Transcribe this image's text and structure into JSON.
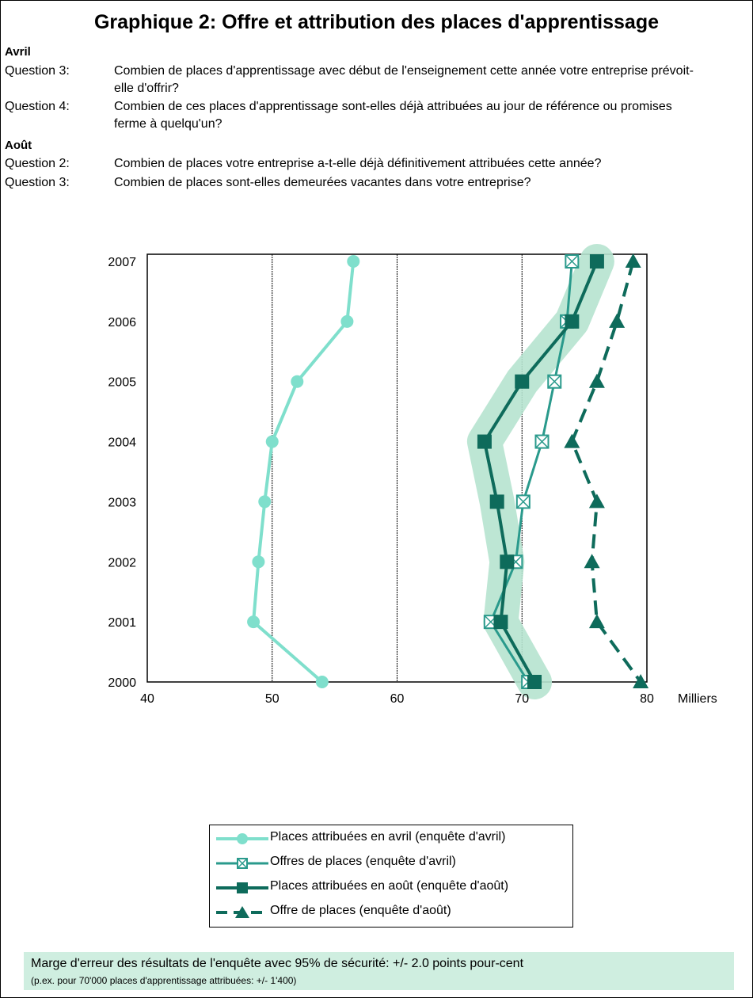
{
  "title": "Graphique 2: Offre et attribution des places d'apprentissage",
  "sections": [
    {
      "heading": "Avril",
      "questions": [
        {
          "label": "Question 3:",
          "text": "Combien de places d'apprentissage avec début de l'enseignement cette année votre entreprise prévoit-elle d'offrir?"
        },
        {
          "label": "Question 4:",
          "text": "Combien de ces places d'apprentissage sont-elles déjà attribuées au jour de référence ou promises ferme à quelqu'un?"
        }
      ]
    },
    {
      "heading": "Août",
      "questions": [
        {
          "label": "Question 2:",
          "text": "Combien de places votre entreprise a-t-elle déjà définitivement attribuées cette année?"
        },
        {
          "label": "Question 3:",
          "text": "Combien de places sont-elles demeurées vacantes dans votre entreprise?"
        }
      ]
    }
  ],
  "chart_data": {
    "type": "line",
    "orientation": "horizontal-values",
    "y_categories": [
      "2007",
      "2006",
      "2005",
      "2004",
      "2003",
      "2002",
      "2001",
      "2000"
    ],
    "x_ticks": [
      "40",
      "50",
      "60",
      "70",
      "80"
    ],
    "xlim": [
      40,
      80
    ],
    "x_unit_label": "Milliers",
    "grid": "vertical-dashed",
    "series": [
      {
        "name": "Places attribuées en avril (enquête d'avril)",
        "color": "#7fdfcc",
        "marker": "circle",
        "dash": "solid",
        "values": [
          56.5,
          56.0,
          52.0,
          50.0,
          49.4,
          48.9,
          48.5,
          54.0
        ]
      },
      {
        "name": "Offres de places (enquête d'avril)",
        "color": "#2a9a8c",
        "marker": "square-x",
        "dash": "solid",
        "values": [
          74.0,
          73.6,
          72.6,
          71.6,
          70.1,
          69.5,
          67.5,
          70.5
        ]
      },
      {
        "name": "Places attribuées en août (enquête d'août)",
        "color": "#0e6b5b",
        "marker": "square",
        "dash": "solid",
        "values": [
          76.0,
          74.0,
          70.0,
          67.0,
          68.0,
          68.8,
          68.3,
          71.0
        ]
      },
      {
        "name": "Offre de places (enquête d'août)",
        "color": "#0e6b5b",
        "marker": "triangle",
        "dash": "dashed",
        "values": [
          78.9,
          77.6,
          76.0,
          74.0,
          76.0,
          75.6,
          76.0,
          79.5
        ]
      }
    ],
    "confidence_band_color": "#b6e3cf"
  },
  "legend_position": "below",
  "note": {
    "line1": "Marge d'erreur des résultats de l'enquête avec 95% de sécurité: +/- 2.0 points pour-cent",
    "line2": "(p.ex. pour 70'000 places d'apprentissage attribuées: +/- 1'400)"
  }
}
